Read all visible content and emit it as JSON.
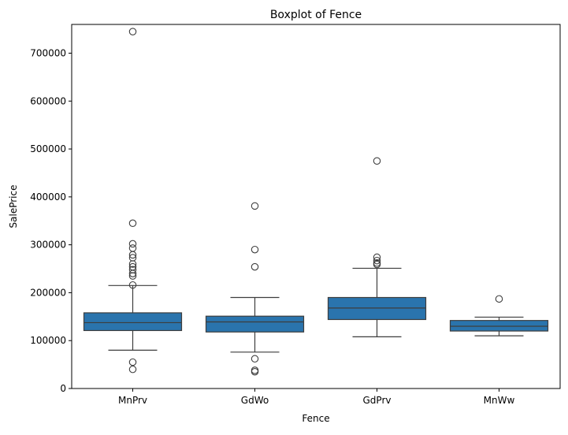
{
  "chart_data": {
    "type": "boxplot",
    "title": "Boxplot of Fence",
    "xlabel": "Fence",
    "ylabel": "SalePrice",
    "ylim": [
      0,
      760000
    ],
    "yticks": [
      0,
      100000,
      200000,
      300000,
      400000,
      500000,
      600000,
      700000
    ],
    "grid": false,
    "box_color": "#2a74ad",
    "categories": [
      "MnPrv",
      "GdWo",
      "GdPrv",
      "MnWw"
    ],
    "boxes": [
      {
        "category": "MnPrv",
        "whisker_low": 80000,
        "q1": 121000,
        "median": 137500,
        "q3": 158000,
        "whisker_high": 215000,
        "outliers": [
          745000,
          345000,
          302000,
          293000,
          279000,
          273000,
          260000,
          254000,
          248000,
          240000,
          235000,
          216000,
          55000,
          40000
        ]
      },
      {
        "category": "GdWo",
        "whisker_low": 76000,
        "q1": 118000,
        "median": 139000,
        "q3": 151000,
        "whisker_high": 190000,
        "outliers": [
          381000,
          290000,
          254000,
          62000,
          38000,
          35000
        ]
      },
      {
        "category": "GdPrv",
        "whisker_low": 108000,
        "q1": 144000,
        "median": 168000,
        "q3": 190000,
        "whisker_high": 251000,
        "outliers": [
          475000,
          274000,
          267000,
          262000,
          259000
        ]
      },
      {
        "category": "MnWw",
        "whisker_low": 110000,
        "q1": 120000,
        "median": 130000,
        "q3": 142000,
        "whisker_high": 149000,
        "outliers": [
          187000
        ]
      }
    ]
  }
}
